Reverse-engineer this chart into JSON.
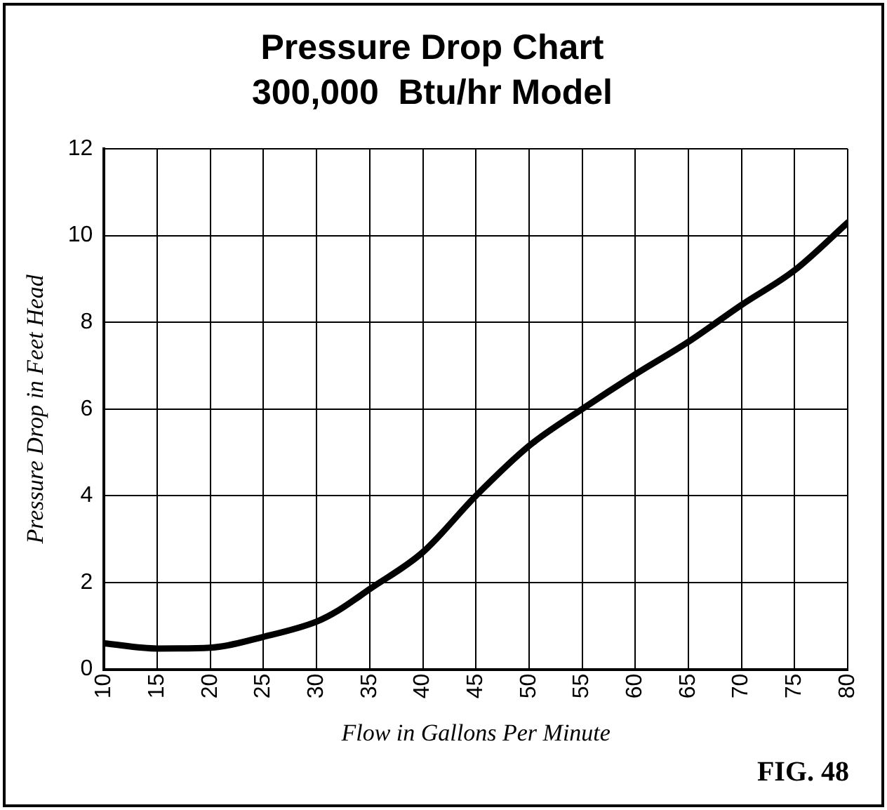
{
  "chart_data": {
    "type": "line",
    "title": "Pressure Drop Chart",
    "subtitle": "300,000  Btu/hr Model",
    "xlabel": "Flow in Gallons Per Minute",
    "ylabel": "Pressure Drop in Feet Head",
    "x": [
      10,
      15,
      20,
      25,
      30,
      32,
      35,
      40,
      45,
      50,
      55,
      60,
      65,
      70,
      75,
      80
    ],
    "series": [
      {
        "color": "#000000",
        "values": [
          0.6,
          0.48,
          0.5,
          0.75,
          1.1,
          1.35,
          1.85,
          2.7,
          4.0,
          5.15,
          6.0,
          6.8,
          7.55,
          8.4,
          9.2,
          10.3
        ]
      }
    ],
    "xlim": [
      10,
      80
    ],
    "xticks": [
      10,
      15,
      20,
      25,
      30,
      35,
      40,
      45,
      50,
      55,
      60,
      65,
      70,
      75,
      80
    ],
    "ylim": [
      0,
      12
    ],
    "yticks": [
      0,
      2,
      4,
      6,
      8,
      10,
      12
    ],
    "grid": true,
    "legend": false,
    "marker": "none",
    "line_style": "solid",
    "annotations": [
      "FIG. 48"
    ]
  }
}
